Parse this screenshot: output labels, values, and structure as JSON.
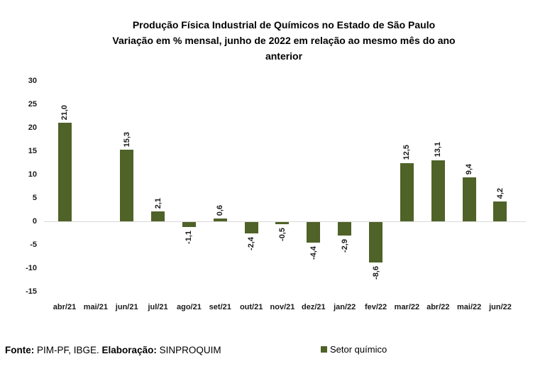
{
  "chart_data": {
    "type": "bar",
    "title": "Produção Física Industrial de Químicos no Estado de São Paulo Variação em % mensal, junho de 2022 em relação ao mesmo mês do ano anterior",
    "title_lines": [
      "Produção Física Industrial de Químicos no Estado de São Paulo",
      "Variação em % mensal, junho de 2022 em relação ao mesmo mês do ano",
      "anterior"
    ],
    "categories": [
      "abr/21",
      "mai/21",
      "jun/21",
      "jul/21",
      "ago/21",
      "set/21",
      "out/21",
      "nov/21",
      "dez/21",
      "jan/22",
      "fev/22",
      "mar/22",
      "abr/22",
      "mai/22",
      "jun/22"
    ],
    "values": [
      21.0,
      null,
      15.3,
      2.1,
      -1.1,
      0.6,
      -2.4,
      -0.5,
      -4.4,
      -2.9,
      -8.6,
      12.5,
      13.1,
      9.4,
      4.2
    ],
    "value_labels": [
      "21,0",
      null,
      "15,3",
      "2,1",
      "-1,1",
      "0,6",
      "-2,4",
      "-0,5",
      "-4,4",
      "-2,9",
      "-8,6",
      "12,5",
      "13,1",
      "9,4",
      "4,2"
    ],
    "ylim": [
      -15,
      30
    ],
    "yticks": [
      30,
      25,
      20,
      15,
      10,
      5,
      0,
      -5,
      -10,
      -15
    ],
    "ytick_labels": [
      "30",
      "25",
      "20",
      "15",
      "10",
      "5",
      "0",
      "-5",
      "-10",
      "-15"
    ],
    "xlabel": "",
    "ylabel": "",
    "grid": "zero-baseline-only",
    "legend": {
      "label": "Setor químico",
      "position": "bottom"
    },
    "colors": {
      "bar": "#4F6228",
      "baseline": "#D9D9D9",
      "text": "#1A1A1A",
      "title": "#000000"
    }
  },
  "footer": {
    "fonte_label": "Fonte:",
    "fonte_text": "PIM-PF, IBGE.",
    "elaboracao_label": "Elaboração:",
    "elaboracao_text": "SINPROQUIM"
  }
}
